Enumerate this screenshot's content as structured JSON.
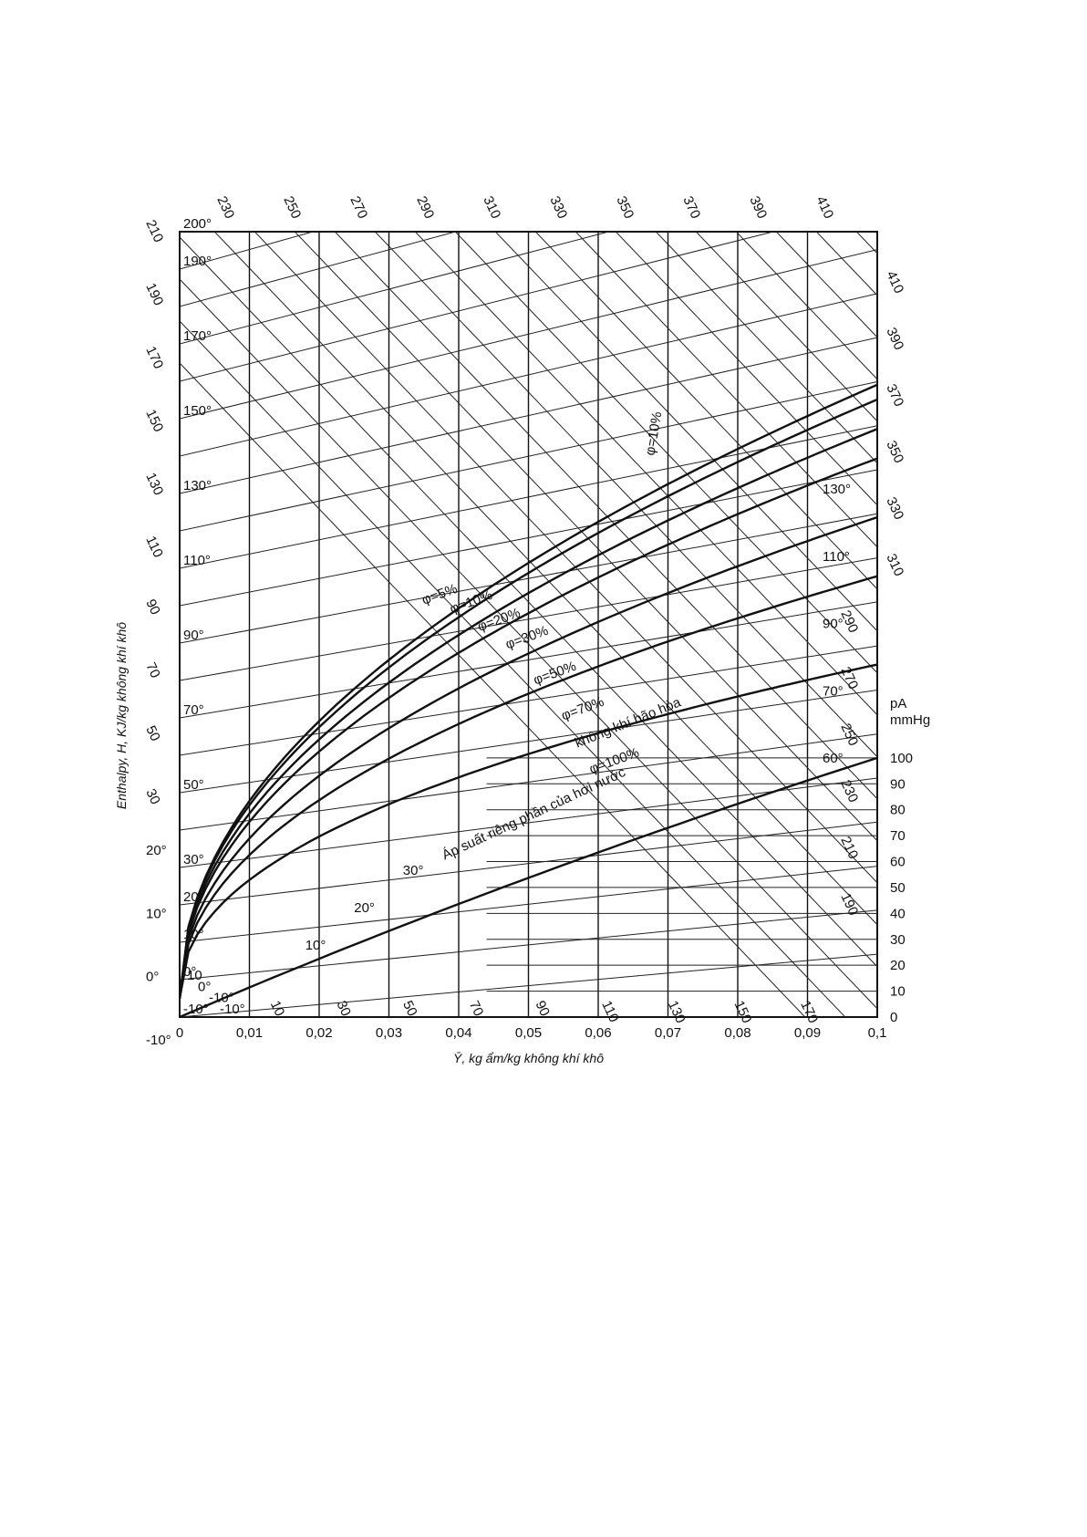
{
  "chart_data": {
    "type": "line",
    "title": "",
    "xlabel": "Ȳ, kg ẩm/kg không khí khô",
    "ylabel": "Enthalpy, H, KJ/kg không khí khô",
    "xlim": [
      0,
      0.1
    ],
    "x_ticks": [
      {
        "value": 0,
        "label": "0"
      },
      {
        "value": 0.01,
        "label": "0,01"
      },
      {
        "value": 0.02,
        "label": "0,02"
      },
      {
        "value": 0.03,
        "label": "0,03"
      },
      {
        "value": 0.04,
        "label": "0,04"
      },
      {
        "value": 0.05,
        "label": "0,05"
      },
      {
        "value": 0.06,
        "label": "0,06"
      },
      {
        "value": 0.07,
        "label": "0,07"
      },
      {
        "value": 0.08,
        "label": "0,08"
      },
      {
        "value": 0.09,
        "label": "0,09"
      },
      {
        "value": 0.1,
        "label": "0,1"
      }
    ],
    "temperature_range": [
      -10,
      200
    ],
    "temperature_labels": [
      {
        "t": 200,
        "label": "200°"
      },
      {
        "t": 190,
        "label": "190°"
      },
      {
        "t": 170,
        "label": "170°"
      },
      {
        "t": 150,
        "label": "150°"
      },
      {
        "t": 130,
        "label": "130°"
      },
      {
        "t": 110,
        "label": "110°"
      },
      {
        "t": 90,
        "label": "90°"
      },
      {
        "t": 70,
        "label": "70°"
      },
      {
        "t": 50,
        "label": "50°"
      },
      {
        "t": 30,
        "label": "30°"
      },
      {
        "t": 20,
        "label": "20°"
      },
      {
        "t": 10,
        "label": "10°"
      },
      {
        "t": 0,
        "label": "0°"
      },
      {
        "t": -10,
        "label": "-10°"
      }
    ],
    "enthalpy_left_labels": [
      "210",
      "190",
      "170",
      "150",
      "130",
      "110",
      "90",
      "70",
      "50",
      "30",
      "20°",
      "10°",
      "0°",
      "-10°"
    ],
    "enthalpy_top_labels": [
      "230",
      "250",
      "270",
      "290",
      "310",
      "330",
      "350",
      "370",
      "390",
      "410"
    ],
    "enthalpy_right_labels": [
      "410",
      "390",
      "370",
      "350",
      "330",
      "310",
      "290",
      "270",
      "250",
      "230",
      "210",
      "190"
    ],
    "enthalpy_bottom_labels": [
      "10",
      "30",
      "50",
      "70",
      "90",
      "110",
      "130",
      "150",
      "170"
    ],
    "right_temperature_labels": [
      "130°",
      "110°",
      "90°",
      "70°",
      "60°"
    ],
    "curve_temperature_labels": [
      "30°",
      "20°",
      "10°"
    ],
    "low_region_labels": [
      "10",
      "0°",
      "-10°",
      "-10°"
    ],
    "series": [
      {
        "name": "φ=5%",
        "phi": 0.05
      },
      {
        "name": "φ=10%",
        "phi": 0.1
      },
      {
        "name": "φ=20%",
        "phi": 0.2
      },
      {
        "name": "φ=30%",
        "phi": 0.3
      },
      {
        "name": "φ=50%",
        "phi": 0.5
      },
      {
        "name": "φ=70%",
        "phi": 0.7
      },
      {
        "name": "φ=100%",
        "phi": 1.0
      }
    ],
    "phi10_vertical_label": "φ=10%",
    "saturation_label": "không khí bão hòa",
    "vapor_pressure": {
      "label": "Áp suất riêng phần của hơi nước",
      "axis_title": "pA",
      "axis_unit": "mmHg",
      "ticks": [
        "100",
        "90",
        "80",
        "70",
        "60",
        "50",
        "40",
        "30",
        "20",
        "10",
        "0"
      ],
      "range": [
        0,
        100
      ]
    },
    "grid": true,
    "legend": "none"
  }
}
